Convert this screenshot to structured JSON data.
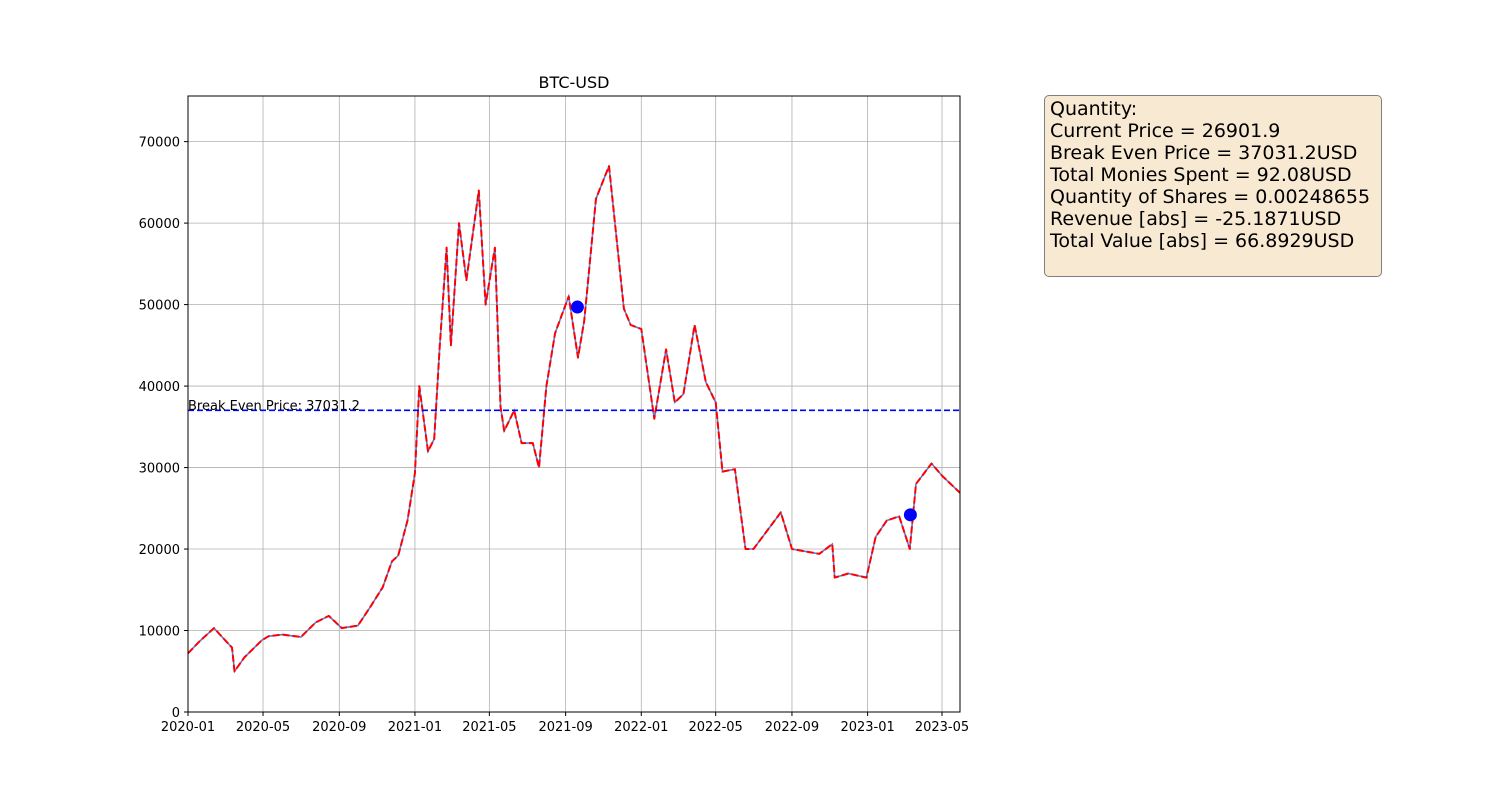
{
  "chart_data": {
    "type": "line",
    "title": "BTC-USD",
    "xlabel": "",
    "ylabel": "",
    "grid": true,
    "x_ticks": [
      "2020-01",
      "2020-05",
      "2020-09",
      "2021-01",
      "2021-05",
      "2021-09",
      "2022-01",
      "2022-05",
      "2022-09",
      "2023-01",
      "2023-05"
    ],
    "y_ticks": [
      0,
      10000,
      20000,
      30000,
      40000,
      50000,
      60000,
      70000
    ],
    "xlim": [
      "2020-01-01",
      "2023-05-30"
    ],
    "ylim": [
      0,
      75600
    ],
    "series": [
      {
        "type": "line",
        "style": "dashed",
        "color": "#ff0000",
        "x": [
          "2020-01-01",
          "2020-01-20",
          "2020-02-12",
          "2020-03-01",
          "2020-03-12",
          "2020-03-16",
          "2020-04-01",
          "2020-04-29",
          "2020-05-10",
          "2020-06-01",
          "2020-07-01",
          "2020-07-25",
          "2020-08-15",
          "2020-09-05",
          "2020-10-01",
          "2020-10-21",
          "2020-11-10",
          "2020-11-25",
          "2020-12-05",
          "2020-12-20",
          "2021-01-01",
          "2021-01-08",
          "2021-01-22",
          "2021-02-01",
          "2021-02-10",
          "2021-02-21",
          "2021-02-28",
          "2021-03-13",
          "2021-03-25",
          "2021-04-14",
          "2021-04-25",
          "2021-05-10",
          "2021-05-19",
          "2021-05-25",
          "2021-06-10",
          "2021-06-22",
          "2021-07-10",
          "2021-07-20",
          "2021-08-01",
          "2021-08-15",
          "2021-09-06",
          "2021-09-21",
          "2021-10-01",
          "2021-10-20",
          "2021-11-10",
          "2021-12-04",
          "2021-12-15",
          "2022-01-01",
          "2022-01-22",
          "2022-02-10",
          "2022-02-24",
          "2022-03-10",
          "2022-03-28",
          "2022-04-15",
          "2022-05-01",
          "2022-05-12",
          "2022-06-01",
          "2022-06-18",
          "2022-07-01",
          "2022-08-14",
          "2022-09-01",
          "2022-10-15",
          "2022-11-05",
          "2022-11-09",
          "2022-12-01",
          "2022-12-30",
          "2023-01-14",
          "2023-02-01",
          "2023-02-21",
          "2023-03-10",
          "2023-03-20",
          "2023-04-14",
          "2023-05-01",
          "2023-05-30"
        ],
        "y": [
          7200,
          8700,
          10300,
          8800,
          7900,
          5000,
          6700,
          8800,
          9300,
          9500,
          9200,
          11000,
          11800,
          10300,
          10600,
          12900,
          15300,
          18500,
          19200,
          23500,
          29300,
          40000,
          32000,
          33500,
          45000,
          57000,
          45000,
          60000,
          53000,
          64000,
          50000,
          57000,
          37500,
          34500,
          37000,
          33000,
          33000,
          30000,
          40000,
          46500,
          51000,
          43500,
          48000,
          63000,
          67000,
          49500,
          47500,
          47000,
          36000,
          44500,
          38000,
          39000,
          47500,
          40500,
          38000,
          29500,
          29800,
          20000,
          20000,
          24500,
          20000,
          19400,
          20600,
          16500,
          17000,
          16500,
          21500,
          23500,
          24000,
          20000,
          28000,
          30500,
          29000,
          26900
        ]
      },
      {
        "type": "line",
        "style": "dashed",
        "color": "#0000ff",
        "name": "Break Even Price: 37031.2",
        "y": 37031.2
      },
      {
        "type": "scatter",
        "color": "#0000ff",
        "x": [
          "2021-09-20",
          "2023-03-11"
        ],
        "y": [
          49700,
          24200
        ]
      }
    ],
    "annotations": [
      {
        "text": "Break Even Price: 37031.2",
        "x": "2020-01-01",
        "y": 37031.2
      }
    ]
  },
  "info_box": {
    "lines": [
      "Quantity:",
      "Current Price = 26901.9",
      "Break Even Price = 37031.2USD",
      "Total Monies Spent = 92.08USD",
      "Quantity of Shares = 0.00248655",
      "Revenue [abs] = -25.1871USD",
      "Total Value [abs] = 66.8929USD"
    ],
    "background": "#f8e9d3"
  }
}
